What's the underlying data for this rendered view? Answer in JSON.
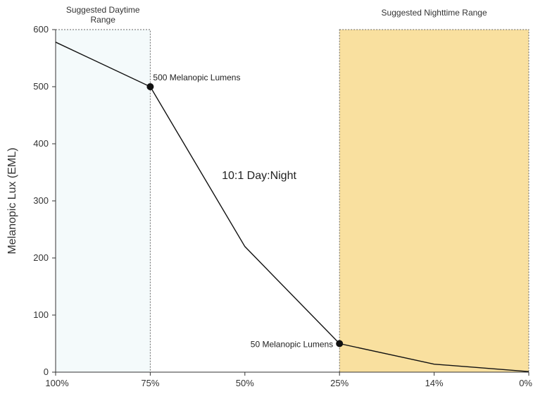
{
  "chart_data": {
    "type": "line",
    "title": "",
    "xlabel": "",
    "ylabel": "Melanopic Lux (EML)",
    "categories": [
      "100%",
      "75%",
      "50%",
      "25%",
      "14%",
      "0%"
    ],
    "series": [
      {
        "values": [
          578,
          500,
          220,
          50,
          14,
          1
        ]
      }
    ],
    "ylim": [
      0,
      600
    ],
    "yticks": [
      0,
      100,
      200,
      300,
      400,
      500,
      600
    ],
    "grid": false,
    "colors": {
      "line": "#111111",
      "daytime_fill": "#f4fafb",
      "nighttime_fill": "#f9e09f",
      "axis": "#333333"
    },
    "ranges": [
      {
        "label_lines": [
          "Suggested Daytime",
          "Range"
        ],
        "from": "100%",
        "to": "75%"
      },
      {
        "label_lines": [
          "Suggested Nighttime Range"
        ],
        "from": "25%",
        "to": "0%"
      }
    ],
    "markers": [
      {
        "category": "75%",
        "value": 500,
        "label": "500 Melanopic Lumens",
        "placement": "right"
      },
      {
        "category": "25%",
        "value": 50,
        "label": "50 Melanopic Lumens",
        "placement": "left"
      }
    ],
    "annotation": "10:1 Day:Night"
  }
}
